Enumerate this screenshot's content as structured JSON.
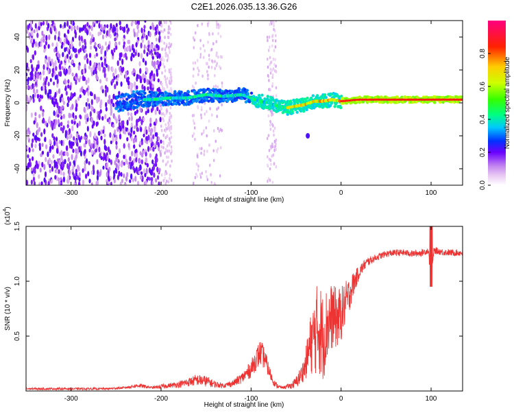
{
  "title": "C2E1.2026.035.13.36.G26",
  "chart_data": [
    {
      "type": "heatmap",
      "xlabel": "Height of straight line (km)",
      "ylabel": "Frequency (Hz)",
      "xlim": [
        -350,
        135
      ],
      "ylim": [
        -50,
        50
      ],
      "xticks": [
        -300,
        -200,
        -100,
        0,
        100
      ],
      "yticks": [
        -40,
        -20,
        0,
        20,
        40
      ],
      "xtick_labels": [
        "-300",
        "-200",
        "-100",
        "0",
        "100"
      ],
      "ytick_labels": [
        "-40",
        "-20",
        "0",
        "20",
        "40"
      ],
      "colorbar": {
        "label": "Normalized spectral amplitude",
        "range": [
          0.0,
          1.0
        ],
        "ticks": [
          0.0,
          0.2,
          0.4,
          0.6,
          0.8
        ],
        "tick_labels": [
          "0.0",
          "0.2",
          "0.4",
          "0.6",
          "0.8"
        ]
      },
      "center_line": [
        {
          "x": -245,
          "f": 0
        },
        {
          "x": -230,
          "f": 2
        },
        {
          "x": -210,
          "f": 2
        },
        {
          "x": -190,
          "f": 3
        },
        {
          "x": -170,
          "f": 3
        },
        {
          "x": -150,
          "f": 5
        },
        {
          "x": -130,
          "f": 4
        },
        {
          "x": -110,
          "f": 5
        },
        {
          "x": -100,
          "f": 3
        },
        {
          "x": -90,
          "f": 1
        },
        {
          "x": -80,
          "f": 0
        },
        {
          "x": -70,
          "f": -2
        },
        {
          "x": -60,
          "f": -3
        },
        {
          "x": -50,
          "f": -2
        },
        {
          "x": -40,
          "f": -1
        },
        {
          "x": -30,
          "f": 1
        },
        {
          "x": -20,
          "f": 1
        },
        {
          "x": -10,
          "f": 2
        },
        {
          "x": 0,
          "f": 1
        },
        {
          "x": 20,
          "f": 2
        },
        {
          "x": 60,
          "f": 2
        },
        {
          "x": 100,
          "f": 2
        },
        {
          "x": 135,
          "f": 2
        }
      ],
      "blob": {
        "x": -37,
        "f": -20
      }
    },
    {
      "type": "line",
      "xlabel": "Height of straight line (km)",
      "ylabel": "SNR (10 * v/v)",
      "scale_label": "(x10",
      "scale_exponent": "4",
      "scale_suffix": ")",
      "xlim": [
        -350,
        135
      ],
      "ylim": [
        0,
        1.5
      ],
      "xticks": [
        -300,
        -200,
        -100,
        0,
        100
      ],
      "yticks": [
        0.5,
        1.0,
        1.5
      ],
      "xtick_labels": [
        "-300",
        "-200",
        "-100",
        "0",
        "100"
      ],
      "ytick_labels": [
        "0.5",
        "1.0",
        "1.5"
      ],
      "color": "#ee3333",
      "series": [
        {
          "name": "SNR",
          "x": [
            -350,
            -320,
            -290,
            -260,
            -240,
            -225,
            -210,
            -200,
            -190,
            -180,
            -170,
            -160,
            -150,
            -140,
            -130,
            -120,
            -110,
            -100,
            -95,
            -90,
            -85,
            -80,
            -75,
            -70,
            -65,
            -60,
            -55,
            -50,
            -45,
            -40,
            -35,
            -30,
            -25,
            -20,
            -15,
            -10,
            -5,
            0,
            5,
            10,
            15,
            20,
            25,
            30,
            40,
            50,
            60,
            70,
            80,
            90,
            97,
            100,
            103,
            110,
            120,
            135
          ],
          "y": [
            0.02,
            0.02,
            0.02,
            0.02,
            0.03,
            0.05,
            0.03,
            0.04,
            0.05,
            0.06,
            0.08,
            0.1,
            0.09,
            0.06,
            0.05,
            0.07,
            0.12,
            0.2,
            0.28,
            0.35,
            0.3,
            0.18,
            0.08,
            0.04,
            0.03,
            0.04,
            0.05,
            0.08,
            0.14,
            0.22,
            0.4,
            0.5,
            0.6,
            0.48,
            0.62,
            0.68,
            0.66,
            0.7,
            0.8,
            0.9,
            1.0,
            1.08,
            1.14,
            1.18,
            1.22,
            1.25,
            1.26,
            1.26,
            1.25,
            1.26,
            1.28,
            1.0,
            1.28,
            1.27,
            1.26,
            1.26
          ],
          "noise": [
            0.01,
            0.01,
            0.01,
            0.01,
            0.01,
            0.02,
            0.01,
            0.02,
            0.02,
            0.03,
            0.04,
            0.05,
            0.05,
            0.03,
            0.02,
            0.03,
            0.05,
            0.08,
            0.1,
            0.12,
            0.1,
            0.06,
            0.03,
            0.02,
            0.01,
            0.02,
            0.03,
            0.05,
            0.08,
            0.12,
            0.25,
            0.35,
            0.45,
            0.4,
            0.35,
            0.3,
            0.28,
            0.25,
            0.2,
            0.15,
            0.1,
            0.06,
            0.05,
            0.04,
            0.03,
            0.03,
            0.03,
            0.03,
            0.03,
            0.03,
            0.03,
            0.03,
            0.03,
            0.03,
            0.03,
            0.03
          ]
        }
      ]
    }
  ]
}
